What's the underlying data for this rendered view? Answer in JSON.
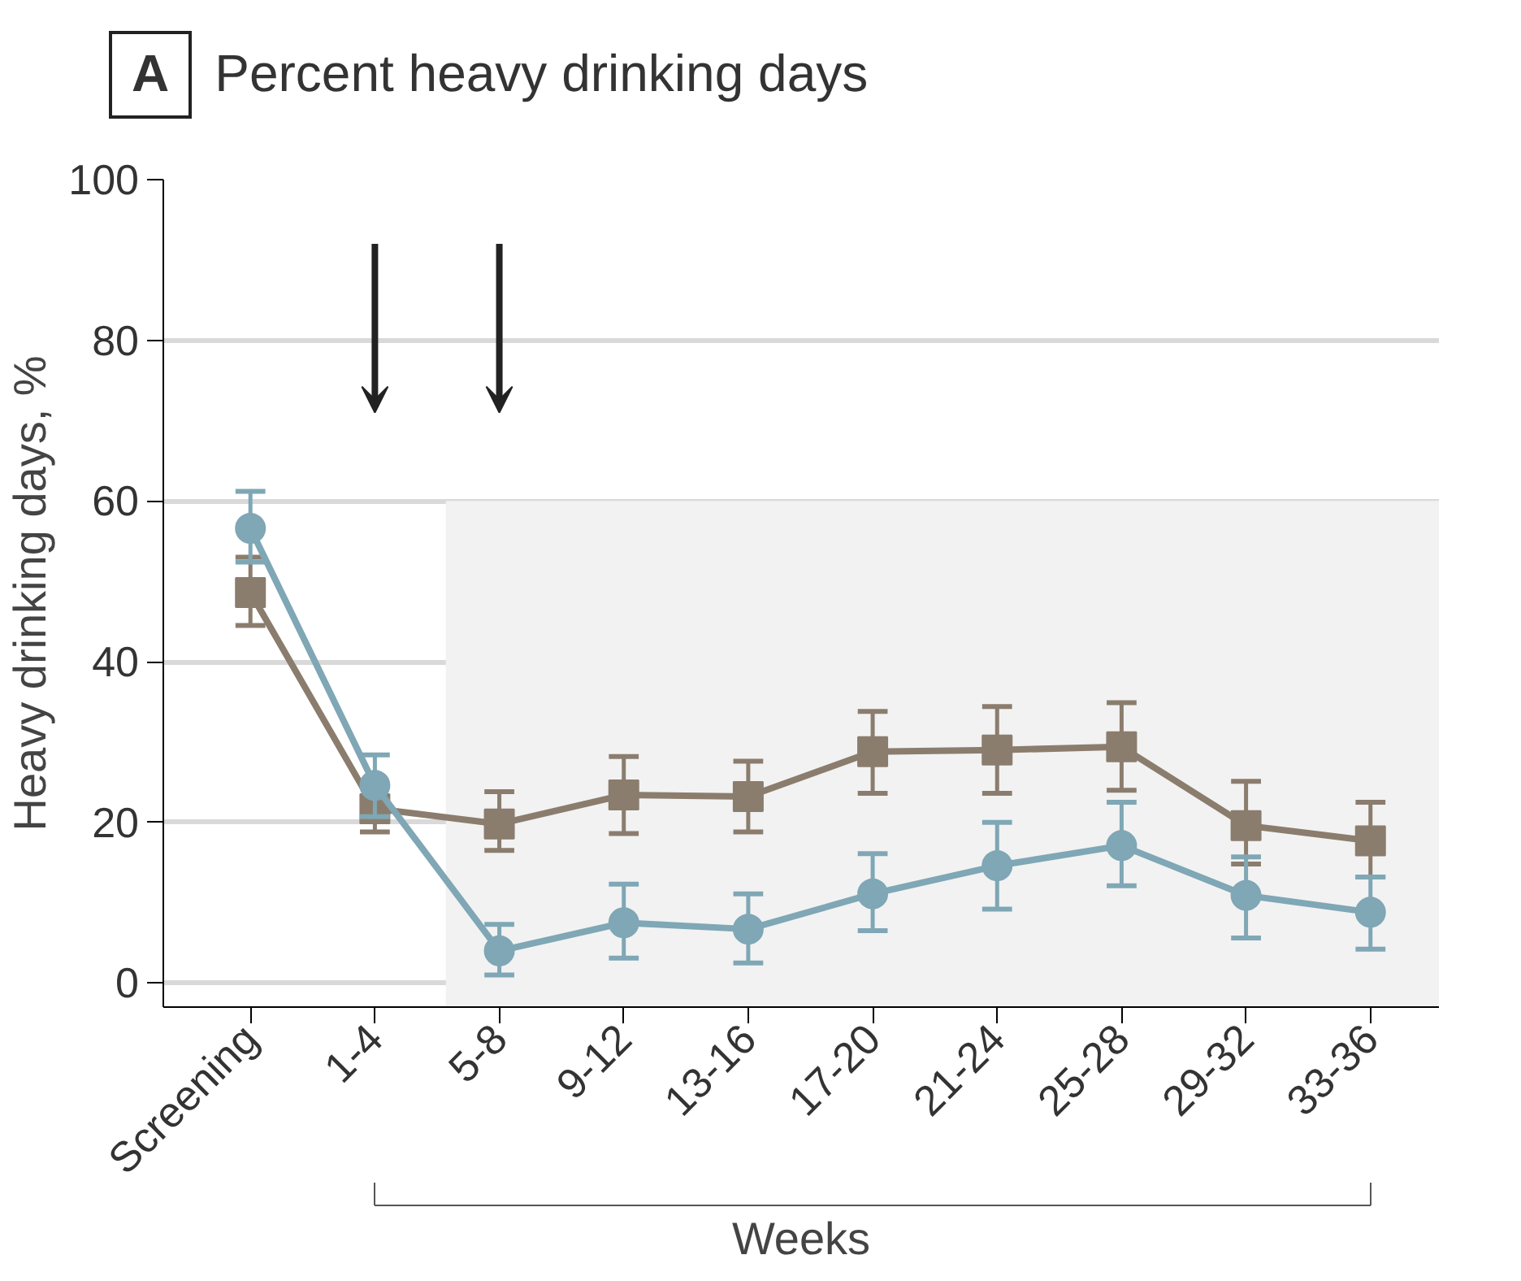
{
  "chart_data": {
    "type": "line",
    "title": "Percent heavy drinking days",
    "ylabel": "Heavy drinking days, %",
    "xlabel": "Weeks",
    "annotations": [
      "A"
    ],
    "categories": [
      "Screening",
      "1-4",
      "5-8",
      "9-12",
      "13-16",
      "17-20",
      "21-24",
      "25-28",
      "29-32",
      "33-36"
    ],
    "series": [
      {
        "color": "#8b7d6e",
        "marker": "square",
        "values": [
          48.6,
          21.7,
          19.8,
          23.4,
          23.2,
          28.8,
          29.0,
          29.4,
          19.6,
          17.7
        ],
        "errors": [
          [
            44.5,
            53.0
          ],
          [
            18.8,
            21.7
          ],
          [
            16.5,
            23.8
          ],
          [
            18.6,
            28.2
          ],
          [
            18.8,
            27.6
          ],
          [
            23.6,
            33.8
          ],
          [
            23.6,
            34.4
          ],
          [
            24.0,
            34.9
          ],
          [
            14.8,
            25.1
          ],
          [
            13.2,
            22.5
          ]
        ]
      },
      {
        "color": "#7fa7b5",
        "marker": "circle",
        "values": [
          56.6,
          24.6,
          4.0,
          7.5,
          6.7,
          11.1,
          14.6,
          17.1,
          10.9,
          8.8
        ],
        "errors": [
          [
            52.4,
            61.2
          ],
          [
            20.7,
            28.4
          ],
          [
            1.0,
            7.3
          ],
          [
            3.1,
            12.3
          ],
          [
            2.5,
            11.1
          ],
          [
            6.5,
            16.1
          ],
          [
            9.2,
            20.0
          ],
          [
            12.1,
            22.5
          ],
          [
            5.6,
            15.7
          ],
          [
            4.2,
            13.2
          ]
        ]
      }
    ],
    "bands": [
      {
        "axis": "y",
        "from": -3,
        "to": 60,
        "color": "#f2f2f2"
      }
    ],
    "ylim": [
      -3,
      100
    ],
    "yticks": [
      0,
      20,
      40,
      60,
      80,
      100
    ],
    "grid": "y"
  }
}
